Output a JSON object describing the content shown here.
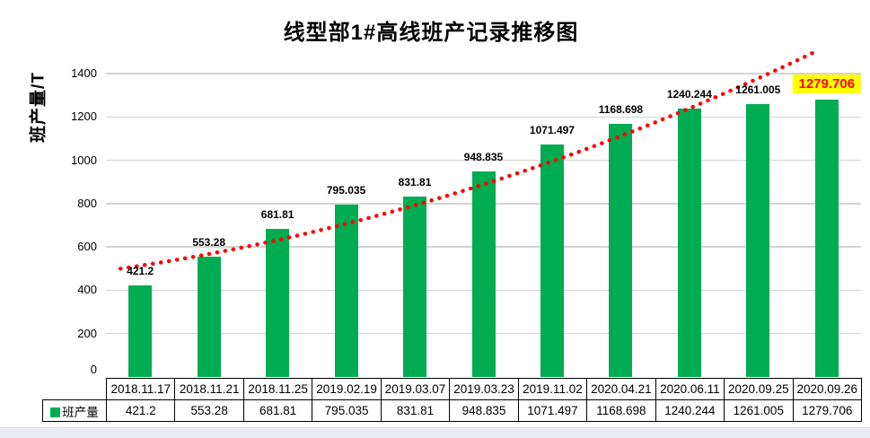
{
  "title": "线型部1#高线班产记录推移图",
  "y_axis": {
    "label": "班产量/T",
    "tick_labels": [
      "0",
      "200",
      "400",
      "600",
      "800",
      "1000",
      "1200",
      "1400"
    ],
    "max": 1500
  },
  "legend": {
    "series_label": "班产量"
  },
  "colors": {
    "bar": "#00AC51",
    "trendline": "#FF0000",
    "gridline": "#d3d3d3",
    "highlight_bg": "#FFFF00",
    "highlight_text": "#FF0000"
  },
  "chart_data": {
    "type": "bar",
    "title": "线型部1#高线班产记录推移图",
    "ylabel": "班产量/T",
    "xlabel": "",
    "categories": [
      "2018.11.17",
      "2018.11.21",
      "2018.11.25",
      "2019.02.19",
      "2019.03.07",
      "2019.03.23",
      "2019.11.02",
      "2020.04.21",
      "2020.06.11",
      "2020.09.25",
      "2020.09.26"
    ],
    "series": [
      {
        "name": "班产量",
        "values": [
          421.2,
          553.28,
          681.81,
          795.035,
          831.81,
          948.835,
          1071.497,
          1168.698,
          1240.244,
          1261.005,
          1279.706
        ]
      }
    ],
    "value_labels": [
      "421.2",
      "553.28",
      "681.81",
      "795.035",
      "831.81",
      "948.835",
      "1071.497",
      "1168.698",
      "1240.244",
      "1261.005",
      "1279.706"
    ],
    "ylim": [
      0,
      1500
    ],
    "yticks": [
      0,
      200,
      400,
      600,
      800,
      1000,
      1200,
      1400
    ],
    "grid": true,
    "legend_position": "bottom-left-of-data-table",
    "highlight_index": 10,
    "trendline": {
      "type": "power-fit",
      "style": "dotted",
      "color": "#FF0000"
    }
  }
}
